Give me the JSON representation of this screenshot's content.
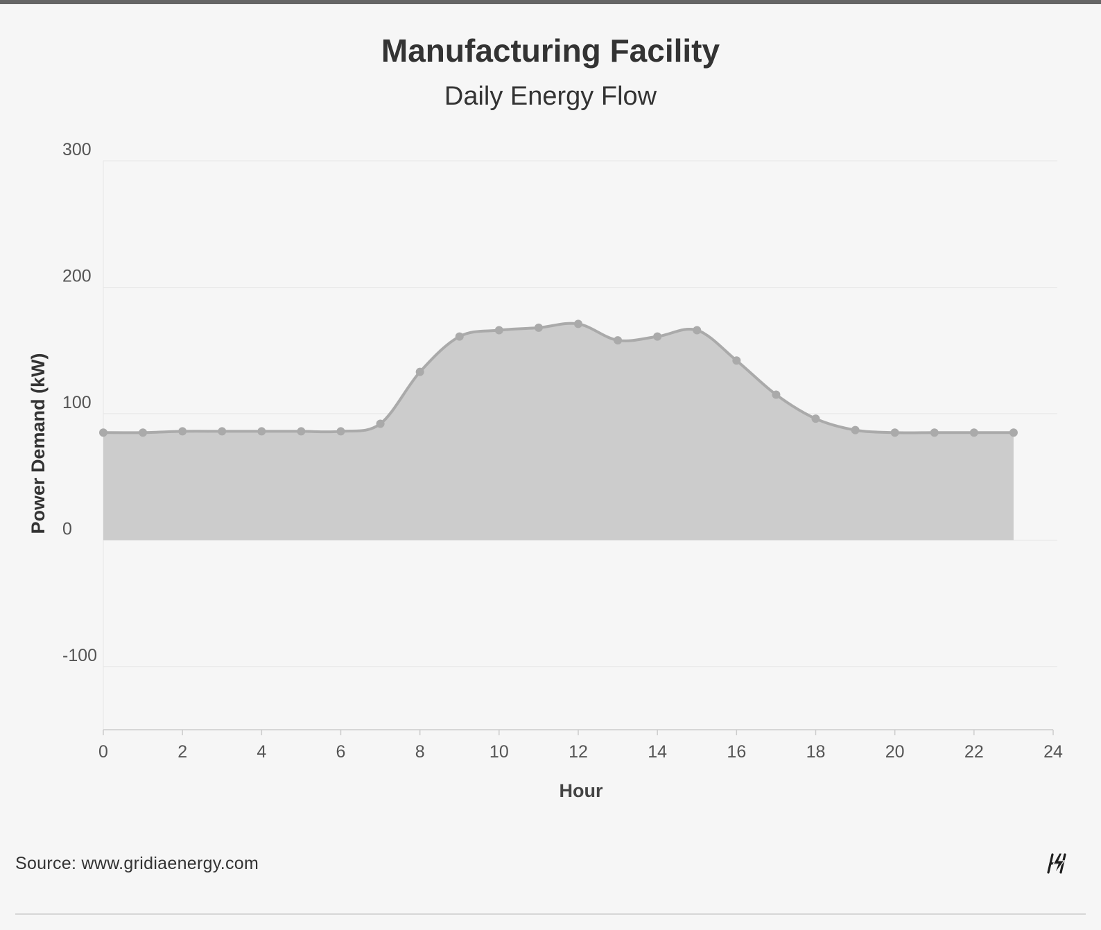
{
  "header": {
    "title": "Manufacturing Facility",
    "subtitle": "Daily Energy Flow"
  },
  "footer": {
    "source": "Source: www.gridiaenergy.com",
    "logo_icon": "gridia-lightning-logo-icon"
  },
  "colors": {
    "area_fill": "#cccccc",
    "line": "#aaaaaa",
    "marker": "#aaaaaa",
    "grid": "#e6e6e6",
    "text": "#333333",
    "axis_text": "#555555"
  },
  "chart_data": {
    "type": "area",
    "title": "Manufacturing Facility",
    "subtitle": "Daily Energy Flow",
    "xlabel": "Hour",
    "ylabel": "Power Demand (kW)",
    "xlim": [
      0,
      24
    ],
    "ylim": [
      -150,
      300
    ],
    "x_ticks": [
      0,
      2,
      4,
      6,
      8,
      10,
      12,
      14,
      16,
      18,
      20,
      22,
      24
    ],
    "y_ticks": [
      -100,
      0,
      100,
      200,
      300
    ],
    "grid": true,
    "legend": "none",
    "series": [
      {
        "x": [
          0,
          1,
          2,
          3,
          4,
          5,
          6,
          7,
          8,
          9,
          10,
          11,
          12,
          13,
          14,
          15,
          16,
          17,
          18,
          19,
          20,
          21,
          22,
          23
        ],
        "values": [
          85,
          85,
          86,
          86,
          86,
          86,
          86,
          92,
          133,
          161,
          166,
          168,
          171,
          158,
          161,
          166,
          142,
          115,
          96,
          87,
          85,
          85,
          85,
          85
        ]
      }
    ]
  }
}
